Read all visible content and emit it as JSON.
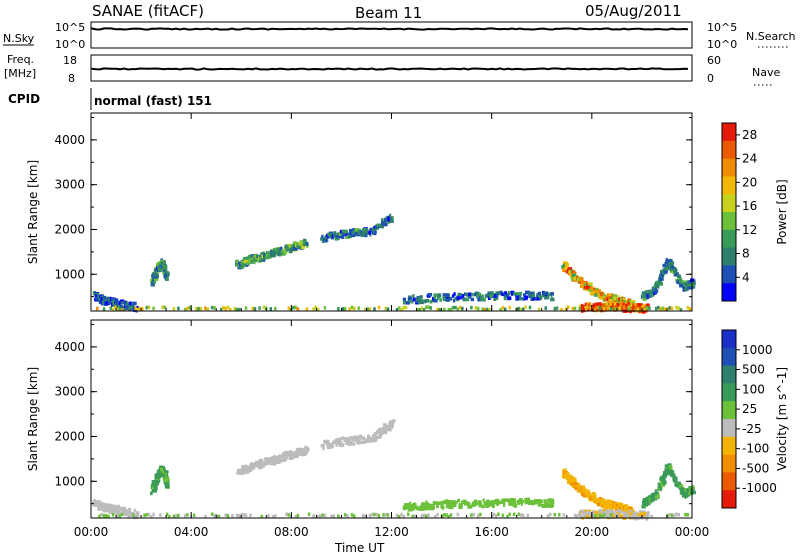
{
  "header": {
    "station": "SANAE (fitACF)",
    "beam": "Beam 11",
    "date": "05/Aug/2011"
  },
  "status_panels": {
    "nsky": {
      "label": "N.Sky",
      "ticks": [
        "10^5",
        "10^0"
      ]
    },
    "nsearch": {
      "label": "N.Search",
      "ticks": [
        "10^5",
        "10^0"
      ]
    },
    "freq": {
      "label1": "Freq.",
      "label2": "[MHz]",
      "ticks": [
        "18",
        "8"
      ]
    },
    "nave": {
      "label": "Nave",
      "ticks": [
        "60",
        "0"
      ]
    },
    "cpid": {
      "label": "CPID",
      "text": "normal (fast) 151"
    }
  },
  "time_axis": {
    "label": "Time UT",
    "ticks": [
      "00:00",
      "04:00",
      "08:00",
      "12:00",
      "16:00",
      "20:00",
      "00:00"
    ]
  },
  "colors": {
    "power_scale": [
      "#0000ff",
      "#1e4fb4",
      "#2f7f6e",
      "#3a9a57",
      "#6cc13a",
      "#c8d21e",
      "#f2b800",
      "#f08c00",
      "#ea5a00",
      "#e41a0a"
    ],
    "velocity_scale": [
      "#e41a0a",
      "#ea5a00",
      "#f28c00",
      "#f2b400",
      "#bcbcbc",
      "#6cc13a",
      "#3a9a57",
      "#2f7f6e",
      "#1e4fb4",
      "#1a2fc8"
    ]
  },
  "chart_data": [
    {
      "type": "heatmap",
      "name": "power",
      "ylabel": "Slant Range [km]",
      "xlabel": "Time UT",
      "yticks": [
        "1000",
        "2000",
        "3000",
        "4000"
      ],
      "ylim": [
        180,
        4600
      ],
      "xlim": [
        0,
        24
      ],
      "colorbar": {
        "label": "Power [dB]",
        "ticks": [
          "4",
          "8",
          "12",
          "16",
          "20",
          "24",
          "28"
        ],
        "range": [
          0,
          30
        ]
      },
      "series": [
        {
          "x": [
            0.1,
            0.5,
            1.0,
            1.8
          ],
          "y": [
            500,
            400,
            350,
            250
          ],
          "value": 5
        },
        {
          "x": [
            2.4,
            2.6,
            2.8,
            3.0
          ],
          "y": [
            800,
            1100,
            1250,
            900
          ],
          "value": 8
        },
        {
          "x": [
            5.8,
            6.5,
            7.2,
            7.9,
            8.6
          ],
          "y": [
            1200,
            1350,
            1450,
            1580,
            1700
          ],
          "value": 10
        },
        {
          "x": [
            9.2,
            10.2,
            11.2,
            12.0
          ],
          "y": [
            1800,
            1900,
            1950,
            2300
          ],
          "value": 7
        },
        {
          "x": [
            12.5,
            14.0,
            15.5,
            17.0,
            18.5
          ],
          "y": [
            420,
            480,
            500,
            520,
            500
          ],
          "value": 6
        },
        {
          "x": [
            18.8,
            19.3,
            19.8,
            20.4,
            21.0,
            21.6
          ],
          "y": [
            1200,
            900,
            700,
            500,
            420,
            300
          ],
          "value": 20
        },
        {
          "x": [
            19.5,
            20.2,
            20.8,
            21.5,
            22.2
          ],
          "y": [
            250,
            260,
            270,
            240,
            230
          ],
          "value": 26
        },
        {
          "x": [
            22.0,
            22.5,
            23.0,
            23.6,
            24.0
          ],
          "y": [
            500,
            650,
            1300,
            700,
            800
          ],
          "value": 8
        }
      ]
    },
    {
      "type": "heatmap",
      "name": "velocity",
      "ylabel": "Slant Range [km]",
      "xlabel": "Time UT",
      "yticks": [
        "1000",
        "2000",
        "3000",
        "4000"
      ],
      "ylim": [
        180,
        4600
      ],
      "xlim": [
        0,
        24
      ],
      "colorbar": {
        "label": "Velocity [m s^-1]",
        "ticks": [
          "1000",
          "500",
          "100",
          "25",
          "-25",
          "-100",
          "-500",
          "-1000"
        ],
        "range": [
          -1200,
          1200
        ]
      },
      "series": [
        {
          "x": [
            0.1,
            0.5,
            1.0,
            1.8
          ],
          "y": [
            500,
            400,
            350,
            250
          ],
          "value": -90
        },
        {
          "x": [
            2.4,
            2.6,
            2.8,
            3.0
          ],
          "y": [
            800,
            1100,
            1250,
            900
          ],
          "value": 300
        },
        {
          "x": [
            5.8,
            6.5,
            7.2,
            7.9,
            8.6
          ],
          "y": [
            1200,
            1350,
            1450,
            1580,
            1700
          ],
          "value": -120
        },
        {
          "x": [
            9.2,
            10.2,
            11.2,
            12.0
          ],
          "y": [
            1800,
            1900,
            1950,
            2300
          ],
          "value": -80
        },
        {
          "x": [
            12.5,
            14.0,
            15.5,
            17.0,
            18.5
          ],
          "y": [
            420,
            480,
            500,
            520,
            500
          ],
          "value": 60
        },
        {
          "x": [
            18.8,
            19.3,
            19.8,
            20.4,
            21.0,
            21.6
          ],
          "y": [
            1200,
            900,
            700,
            500,
            420,
            300
          ],
          "value": -400
        },
        {
          "x": [
            19.5,
            20.2,
            20.8,
            21.5,
            22.2
          ],
          "y": [
            250,
            260,
            270,
            240,
            230
          ],
          "value": -200
        },
        {
          "x": [
            22.0,
            22.5,
            23.0,
            23.6,
            24.0
          ],
          "y": [
            500,
            650,
            1300,
            700,
            800
          ],
          "value": 300
        }
      ]
    }
  ]
}
